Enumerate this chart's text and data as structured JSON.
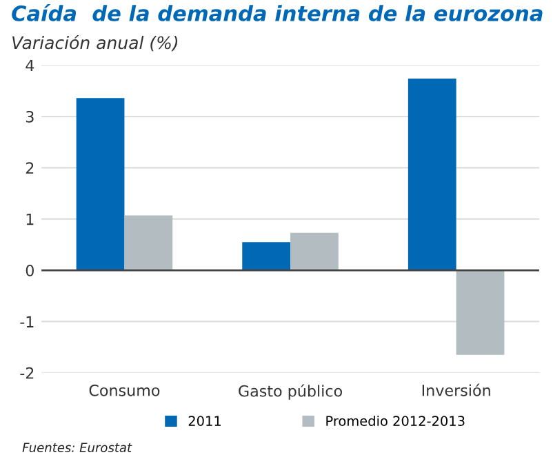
{
  "chart_data": {
    "type": "bar",
    "title": "Caída  de la demanda interna de la eurozona",
    "subtitle": "Variación anual (%)",
    "categories": [
      "Consumo",
      "Gasto público",
      "Inversión"
    ],
    "series": [
      {
        "name": "2011",
        "color": "#0068b4",
        "values": [
          3.36,
          0.55,
          3.74
        ]
      },
      {
        "name": "Promedio 2012-2013",
        "color": "#b3bcc1",
        "values": [
          1.07,
          0.73,
          -1.65
        ]
      }
    ],
    "ylim": [
      -2,
      4
    ],
    "yticks": [
      {
        "value": -2,
        "label": "-2"
      },
      {
        "value": -1,
        "label": "-1"
      },
      0,
      1,
      2,
      3,
      4
    ],
    "grid": "y",
    "legend": "bottom",
    "annotations": [
      "Fuentes: Eurostat"
    ]
  }
}
